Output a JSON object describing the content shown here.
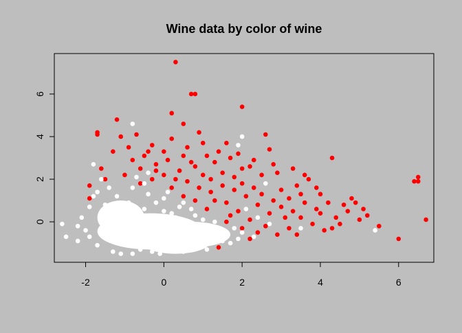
{
  "chart_data": {
    "type": "scatter",
    "title": "Wine data by color of wine",
    "xlabel": "",
    "ylabel": "",
    "xlim": [
      -2.8,
      6.9
    ],
    "ylim": [
      -1.9,
      7.9
    ],
    "x_ticks": [
      -2,
      0,
      2,
      4,
      6
    ],
    "y_ticks": [
      0,
      2,
      4,
      6
    ],
    "x_tick_labels": [
      "-2",
      "0",
      "2",
      "4",
      "6"
    ],
    "y_tick_labels": [
      "0",
      "2",
      "4",
      "6"
    ],
    "grid": false,
    "legend": "none",
    "background_color": "#bebebe",
    "series": [
      {
        "color": "#ff0000",
        "values": [
          [
            0.3,
            7.5
          ],
          [
            0.7,
            6.0
          ],
          [
            0.8,
            6.0
          ],
          [
            2.0,
            5.4
          ],
          [
            0.2,
            5.1
          ],
          [
            -1.2,
            4.8
          ],
          [
            0.5,
            4.6
          ],
          [
            -1.7,
            4.2
          ],
          [
            -1.7,
            4.1
          ],
          [
            2.6,
            4.1
          ],
          [
            0.9,
            4.2
          ],
          [
            -0.7,
            4.1
          ],
          [
            4.3,
            3.0
          ],
          [
            6.5,
            2.1
          ],
          [
            6.4,
            1.9
          ],
          [
            6.5,
            1.9
          ],
          [
            6.7,
            0.1
          ],
          [
            5.5,
            -0.2
          ],
          [
            6.0,
            -0.8
          ],
          [
            5.2,
            0.3
          ],
          [
            4.9,
            0.9
          ],
          [
            5.1,
            0.6
          ],
          [
            4.6,
            0.8
          ],
          [
            4.8,
            1.1
          ],
          [
            4.4,
            0.2
          ],
          [
            3.9,
            1.6
          ],
          [
            3.6,
            2.2
          ],
          [
            3.4,
            1.7
          ],
          [
            3.0,
            1.5
          ],
          [
            3.2,
            1.1
          ],
          [
            2.7,
            3.4
          ],
          [
            2.9,
            2.3
          ],
          [
            2.2,
            2.6
          ],
          [
            1.7,
            3.0
          ],
          [
            1.4,
            3.3
          ],
          [
            1.0,
            3.7
          ],
          [
            1.3,
            2.8
          ],
          [
            0.6,
            3.5
          ],
          [
            0.2,
            3.9
          ],
          [
            -0.3,
            3.6
          ],
          [
            -0.5,
            3.1
          ],
          [
            -0.8,
            2.9
          ],
          [
            -1.3,
            3.3
          ],
          [
            -1.6,
            2.5
          ],
          [
            -1.5,
            2.0
          ],
          [
            -1.9,
            1.7
          ],
          [
            -1.9,
            1.1
          ],
          [
            -1.4,
            0.7
          ],
          [
            -1.0,
            2.2
          ],
          [
            -0.6,
            2.5
          ],
          [
            -0.2,
            2.7
          ],
          [
            0.1,
            2.9
          ],
          [
            0.4,
            2.4
          ],
          [
            0.8,
            2.6
          ],
          [
            1.0,
            2.2
          ],
          [
            1.2,
            2.0
          ],
          [
            1.5,
            2.3
          ],
          [
            1.8,
            2.1
          ],
          [
            2.0,
            1.8
          ],
          [
            2.3,
            1.6
          ],
          [
            2.5,
            1.3
          ],
          [
            2.8,
            1.0
          ],
          [
            3.0,
            0.7
          ],
          [
            3.3,
            0.5
          ],
          [
            3.5,
            0.2
          ],
          [
            3.8,
            -0.1
          ],
          [
            4.0,
            0.4
          ],
          [
            4.2,
            0.9
          ],
          [
            3.6,
            0.9
          ],
          [
            3.1,
            0.2
          ],
          [
            2.7,
            0.4
          ],
          [
            2.4,
            0.8
          ],
          [
            2.1,
            1.2
          ],
          [
            1.8,
            1.5
          ],
          [
            1.5,
            1.7
          ],
          [
            1.2,
            1.4
          ],
          [
            0.9,
            1.6
          ],
          [
            0.6,
            1.9
          ],
          [
            0.3,
            2.0
          ],
          [
            0.0,
            2.2
          ],
          [
            -0.3,
            2.0
          ],
          [
            -0.6,
            1.8
          ],
          [
            2.2,
            0.1
          ],
          [
            2.6,
            -0.2
          ],
          [
            2.9,
            -0.6
          ],
          [
            3.2,
            -0.3
          ],
          [
            1.9,
            0.5
          ],
          [
            1.6,
            0.9
          ],
          [
            2.4,
            -0.5
          ],
          [
            3.4,
            -0.6
          ],
          [
            4.1,
            -0.4
          ],
          [
            4.5,
            -0.1
          ],
          [
            1.3,
            1.0
          ],
          [
            1.1,
            0.6
          ],
          [
            1.7,
            0.3
          ],
          [
            3.7,
            2.0
          ],
          [
            2.8,
            2.7
          ],
          [
            2.5,
            2.2
          ],
          [
            3.3,
            2.5
          ],
          [
            1.9,
            3.2
          ],
          [
            1.6,
            3.7
          ],
          [
            1.1,
            3.1
          ],
          [
            0.5,
            3.1
          ],
          [
            0.0,
            3.3
          ],
          [
            -0.9,
            3.5
          ],
          [
            -1.1,
            4.0
          ],
          [
            4.0,
            1.3
          ],
          [
            4.7,
            0.5
          ],
          [
            5.0,
            0.1
          ],
          [
            4.3,
            -0.3
          ],
          [
            1.4,
            -1.2
          ],
          [
            2.2,
            -0.8
          ],
          [
            0.9,
            -0.2
          ],
          [
            1.2,
            -0.5
          ],
          [
            3.9,
            0.6
          ],
          [
            3.5,
            1.3
          ],
          [
            2.0,
            2.5
          ],
          [
            2.3,
            2.9
          ],
          [
            0.7,
            2.8
          ],
          [
            -0.4,
            3.3
          ],
          [
            -0.2,
            2.4
          ],
          [
            0.2,
            1.6
          ],
          [
            0.5,
            1.2
          ],
          [
            0.8,
            1.0
          ],
          [
            1.6,
            0.0
          ],
          [
            2.0,
            -0.3
          ]
        ]
      },
      {
        "color": "#ffffff",
        "values": [
          [
            -2.6,
            -0.1
          ],
          [
            -2.5,
            -0.7
          ],
          [
            -2.2,
            -0.9
          ],
          [
            -2.0,
            -0.4
          ],
          [
            -1.9,
            0.7
          ],
          [
            -1.8,
            2.7
          ],
          [
            -1.6,
            2.0
          ],
          [
            -1.8,
            1.2
          ],
          [
            -1.3,
            -1.4
          ],
          [
            -0.8,
            -1.5
          ],
          [
            -0.3,
            -1.4
          ],
          [
            0.3,
            -1.3
          ],
          [
            0.9,
            -1.2
          ],
          [
            1.5,
            -0.9
          ],
          [
            2.0,
            -0.5
          ],
          [
            1.8,
            -0.3
          ],
          [
            1.3,
            0.0
          ],
          [
            0.8,
            0.3
          ],
          [
            0.4,
            0.7
          ],
          [
            0.0,
            1.1
          ],
          [
            -0.4,
            1.3
          ],
          [
            -0.8,
            1.6
          ],
          [
            -1.2,
            1.2
          ],
          [
            -1.5,
            0.8
          ],
          [
            -1.6,
            0.2
          ],
          [
            -1.5,
            -0.5
          ],
          [
            -1.2,
            -0.9
          ],
          [
            -0.9,
            -0.6
          ],
          [
            -0.6,
            -0.2
          ],
          [
            -0.3,
            0.2
          ],
          [
            0.0,
            0.5
          ],
          [
            0.3,
            0.2
          ],
          [
            0.6,
            -0.1
          ],
          [
            0.9,
            -0.4
          ],
          [
            1.2,
            -0.6
          ],
          [
            0.4,
            -0.7
          ],
          [
            0.0,
            -0.4
          ],
          [
            -0.4,
            -0.8
          ],
          [
            -0.7,
            -1.1
          ],
          [
            -1.0,
            -0.3
          ],
          [
            -1.3,
            0.4
          ],
          [
            -0.9,
            0.9
          ],
          [
            -0.5,
            0.6
          ],
          [
            -0.2,
            -0.1
          ],
          [
            0.2,
            -1.0
          ],
          [
            0.6,
            -0.9
          ],
          [
            1.0,
            -0.9
          ],
          [
            1.4,
            -0.4
          ],
          [
            0.7,
            0.6
          ],
          [
            -0.7,
            2.1
          ],
          [
            -0.4,
            2.3
          ],
          [
            -0.8,
            4.6
          ],
          [
            2.0,
            4.0
          ],
          [
            1.9,
            3.6
          ],
          [
            2.6,
            1.8
          ],
          [
            3.5,
            -0.3
          ],
          [
            5.4,
            -0.4
          ],
          [
            2.7,
            -0.1
          ],
          [
            2.3,
            -0.7
          ],
          [
            1.7,
            -1.0
          ],
          [
            -1.9,
            -0.7
          ],
          [
            -2.2,
            -0.2
          ],
          [
            -1.7,
            -1.1
          ],
          [
            -1.1,
            -1.5
          ],
          [
            -0.1,
            -1.5
          ],
          [
            0.5,
            -1.4
          ],
          [
            1.1,
            -1.3
          ],
          [
            -0.2,
            0.9
          ],
          [
            0.5,
            0.9
          ],
          [
            -1.1,
            0.1
          ],
          [
            -0.6,
            -1.3
          ],
          [
            0.8,
            -0.6
          ],
          [
            1.6,
            -0.7
          ],
          [
            -0.5,
            1.8
          ],
          [
            0.1,
            1.4
          ],
          [
            -1.4,
            1.6
          ],
          [
            -1.7,
            1.4
          ],
          [
            -2.1,
            0.2
          ],
          [
            1.0,
            0.1
          ],
          [
            0.2,
            0.4
          ],
          [
            -0.3,
            -0.5
          ],
          [
            -0.8,
            0.3
          ],
          [
            -1.2,
            -0.1
          ],
          [
            0.6,
            0.0
          ],
          [
            1.2,
            -1.0
          ],
          [
            1.9,
            -0.8
          ],
          [
            2.4,
            0.2
          ],
          [
            2.1,
            0.6
          ]
        ],
        "blobs": [
          [
            -0.35,
            -0.45,
            1.35,
            0.85
          ],
          [
            0.7,
            -0.6,
            1.0,
            0.6
          ],
          [
            -1.1,
            0.2,
            0.6,
            0.8
          ],
          [
            0.3,
            -0.9,
            0.9,
            0.6
          ]
        ]
      }
    ]
  }
}
